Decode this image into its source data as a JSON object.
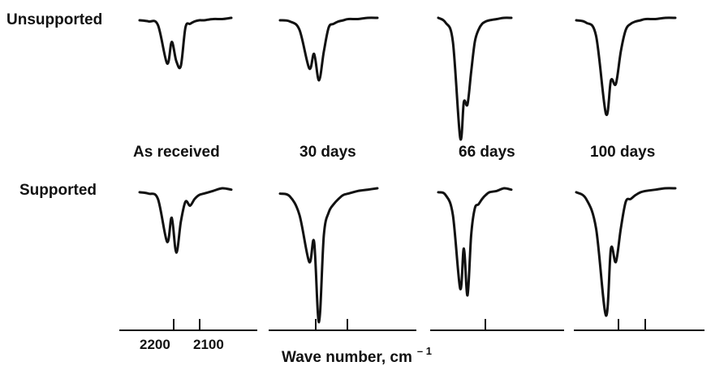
{
  "chart_data": {
    "type": "line",
    "title": "",
    "xlabel": "Wave number, cm",
    "xlabel_superscript": "– 1",
    "row_labels": [
      "Unsupported",
      "Supported"
    ],
    "column_labels": [
      "As received",
      "30 days",
      "66 days",
      "100 days"
    ],
    "x_tick_labels": [
      "2200",
      "2100"
    ],
    "x": [
      2260,
      2240,
      2220,
      2200,
      2190,
      2180,
      2170,
      2160,
      2150,
      2140,
      2130,
      2120,
      2100,
      2080,
      2060
    ],
    "panels": [
      {
        "row": "Unsupported",
        "column": "As received",
        "values": [
          0.02,
          0.03,
          0.06,
          0.38,
          0.2,
          0.36,
          0.4,
          0.08,
          0.05,
          0.03,
          0.02,
          0.02,
          0.01,
          0.01,
          0.0
        ]
      },
      {
        "row": "Unsupported",
        "column": "30 days",
        "values": [
          0.02,
          0.03,
          0.1,
          0.42,
          0.3,
          0.52,
          0.28,
          0.08,
          0.05,
          0.03,
          0.02,
          0.01,
          0.01,
          0.0,
          0.0
        ]
      },
      {
        "row": "Unsupported",
        "column": "66 days",
        "values": [
          0.0,
          0.04,
          0.2,
          1.0,
          0.7,
          0.72,
          0.45,
          0.2,
          0.1,
          0.05,
          0.03,
          0.02,
          0.01,
          0.0,
          0.0
        ]
      },
      {
        "row": "Unsupported",
        "column": "100 days",
        "values": [
          0.02,
          0.04,
          0.15,
          0.8,
          0.52,
          0.55,
          0.28,
          0.1,
          0.05,
          0.03,
          0.02,
          0.01,
          0.01,
          0.0,
          0.0
        ]
      },
      {
        "row": "Supported",
        "column": "As received",
        "values": [
          0.03,
          0.04,
          0.08,
          0.4,
          0.22,
          0.48,
          0.25,
          0.1,
          0.13,
          0.08,
          0.05,
          0.04,
          0.02,
          0.0,
          0.01
        ]
      },
      {
        "row": "Supported",
        "column": "30 days",
        "values": [
          0.04,
          0.06,
          0.2,
          0.55,
          0.4,
          1.0,
          0.35,
          0.18,
          0.12,
          0.08,
          0.05,
          0.04,
          0.02,
          0.01,
          0.0
        ]
      },
      {
        "row": "Supported",
        "column": "66 days",
        "values": [
          0.03,
          0.05,
          0.2,
          0.75,
          0.45,
          0.8,
          0.35,
          0.15,
          0.12,
          0.08,
          0.05,
          0.03,
          0.02,
          0.0,
          0.01
        ]
      },
      {
        "row": "Supported",
        "column": "100 days",
        "values": [
          0.03,
          0.08,
          0.3,
          0.95,
          0.45,
          0.55,
          0.3,
          0.1,
          0.08,
          0.05,
          0.03,
          0.02,
          0.01,
          0.0,
          0.0
        ]
      }
    ],
    "grid": false,
    "legend": "none"
  }
}
